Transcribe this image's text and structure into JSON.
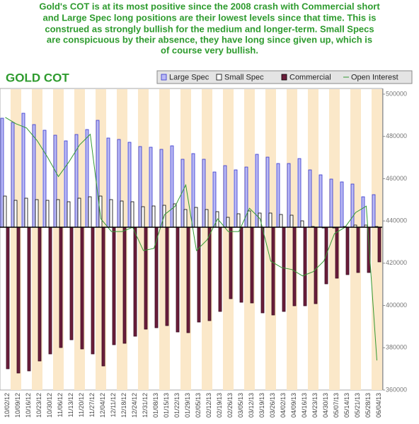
{
  "caption": [
    "Gold's COT is at its most positive since the 2008 crash with Commercial short",
    "and Large Spec long positions are their lowest levels since that time. This is",
    "construed as strongly bullish for the medium and longer-term. Small Specs",
    "are conspicuous by their absence, they have long since given up, which is",
    "of course very bullish."
  ],
  "chart_data": {
    "type": "bar",
    "title": "GOLD COT",
    "categories": [
      "10/02/12",
      "10/09/12",
      "10/16/12",
      "10/23/12",
      "10/30/12",
      "11/06/12",
      "11/13/12",
      "11/20/12",
      "11/27/12",
      "12/04/12",
      "12/11/12",
      "12/18/12",
      "12/24/12",
      "12/31/12",
      "01/08/13",
      "01/15/13",
      "01/22/13",
      "01/29/13",
      "02/05/13",
      "02/12/13",
      "02/19/13",
      "02/26/13",
      "03/05/13",
      "03/12/13",
      "03/19/13",
      "03/26/13",
      "04/02/13",
      "04/09/13",
      "04/16/13",
      "04/23/13",
      "04/30/13",
      "05/07/13",
      "05/14/13",
      "05/21/13",
      "05/28/13",
      "06/04/13"
    ],
    "series": [
      {
        "name": "Large Spec",
        "color": "#b9b9f5",
        "values": [
          154000,
          148000,
          161000,
          145000,
          137000,
          130000,
          122000,
          131000,
          138000,
          151000,
          126000,
          124000,
          120000,
          114000,
          113000,
          110000,
          115000,
          96000,
          104000,
          96000,
          78000,
          87000,
          81000,
          85000,
          103000,
          99000,
          90000,
          90000,
          97000,
          81000,
          74000,
          68000,
          64000,
          61000,
          43000,
          46000
        ]
      },
      {
        "name": "Small Spec",
        "color": "#ffffff",
        "values": [
          44000,
          38000,
          41000,
          39000,
          38000,
          39000,
          36000,
          41000,
          43000,
          44000,
          39000,
          37000,
          36000,
          29000,
          30000,
          31000,
          33000,
          25000,
          28000,
          25000,
          22000,
          14000,
          19000,
          23000,
          20000,
          20000,
          18000,
          17000,
          9000,
          1000,
          -1000,
          -1000,
          1000,
          3000,
          3000,
          1000
        ]
      },
      {
        "name": "Commercial",
        "color": "#6b1d3b",
        "values": [
          -200000,
          -206000,
          -203000,
          -189000,
          -179000,
          -170000,
          -159000,
          -172000,
          -179000,
          -196000,
          -166000,
          -164000,
          -154000,
          -144000,
          -142000,
          -139000,
          -148000,
          -149000,
          -134000,
          -132000,
          -119000,
          -101000,
          -106000,
          -107000,
          -121000,
          -124000,
          -119000,
          -111000,
          -111000,
          -108000,
          -80000,
          -72000,
          -67000,
          -64000,
          -64000,
          -49000
        ]
      },
      {
        "name": "Open Interest",
        "type": "line",
        "axis": "y2",
        "color": "#339933",
        "values": [
          489000,
          486000,
          484000,
          478000,
          470000,
          461000,
          468000,
          476000,
          481000,
          441000,
          435000,
          435000,
          437000,
          426000,
          427000,
          443000,
          447000,
          457000,
          426000,
          431000,
          441000,
          435000,
          435000,
          446000,
          441000,
          421000,
          418000,
          417000,
          414000,
          416000,
          421000,
          434000,
          437000,
          444000,
          447000,
          374000
        ]
      }
    ],
    "ylim": [
      -230000,
      188000
    ],
    "y2lim": [
      360000,
      500000
    ],
    "y2ticks": [
      360000,
      380000,
      400000,
      420000,
      440000,
      460000,
      480000,
      500000
    ],
    "stripes": true
  }
}
